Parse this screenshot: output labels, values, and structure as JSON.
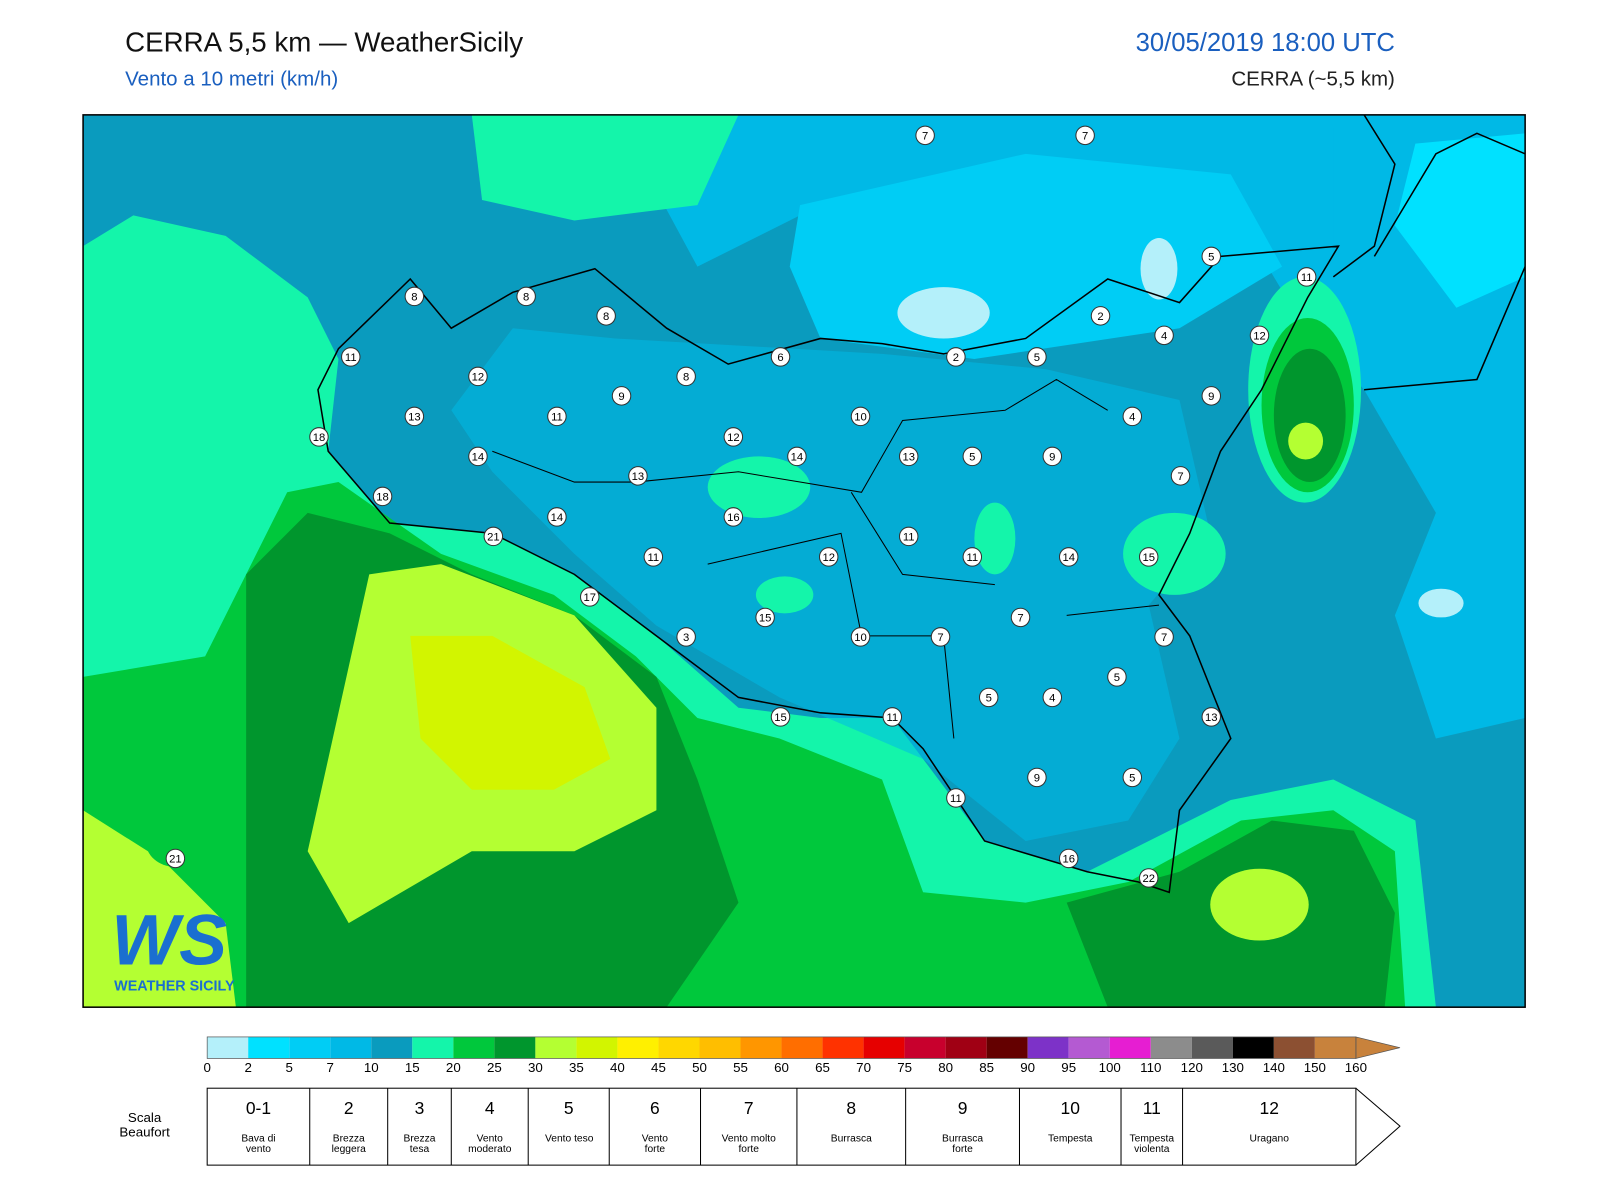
{
  "header": {
    "title": "CERRA 5,5 km — WeatherSicily",
    "subtitle": "Vento a 10 metri (km/h)",
    "datetime": "30/05/2019 18:00 UTC",
    "model": "CERRA (~5,5 km)"
  },
  "map": {
    "station_values": [
      7,
      7,
      5,
      11,
      8,
      8,
      8,
      2,
      4,
      12,
      11,
      6,
      2,
      5,
      12,
      8,
      9,
      9,
      13,
      11,
      10,
      4,
      18,
      12,
      14,
      14,
      13,
      5,
      9,
      13,
      7,
      18,
      16,
      14,
      21,
      11,
      11,
      12,
      11,
      14,
      15,
      17,
      15,
      7,
      3,
      10,
      7,
      7,
      5,
      5,
      4,
      13,
      15,
      11,
      9,
      5,
      11,
      21,
      16,
      22
    ]
  },
  "logo": {
    "initials": "WS",
    "name": "WEATHER SICILY"
  },
  "colorbar": {
    "ticks": [
      0,
      2,
      5,
      7,
      10,
      15,
      20,
      25,
      30,
      35,
      40,
      45,
      50,
      55,
      60,
      65,
      70,
      75,
      80,
      85,
      90,
      95,
      100,
      110,
      120,
      130,
      140,
      150,
      160
    ],
    "colors": [
      "#b4f0fa",
      "#00e1ff",
      "#00cdf5",
      "#00b9e6",
      "#0a9bbe",
      "#14f5aa",
      "#00c83c",
      "#00962d",
      "#b4ff32",
      "#d2f500",
      "#fff000",
      "#ffd700",
      "#ffbe00",
      "#ff9600",
      "#ff6e00",
      "#ff3200",
      "#e60000",
      "#c8002d",
      "#a00014",
      "#640000",
      "#7d32c8",
      "#b45ad2",
      "#e61ed2",
      "#8c8c8c",
      "#5a5a5a",
      "#000000",
      "#8c5032",
      "#c8823c"
    ]
  },
  "beaufort": {
    "label": "Scala Beaufort",
    "grades": [
      {
        "grade": "0-1",
        "description": "Bava di vento"
      },
      {
        "grade": "2",
        "description": "Brezza leggera"
      },
      {
        "grade": "3",
        "description": "Brezza tesa"
      },
      {
        "grade": "4",
        "description": "Vento moderato"
      },
      {
        "grade": "5",
        "description": "Vento teso"
      },
      {
        "grade": "6",
        "description": "Vento forte"
      },
      {
        "grade": "7",
        "description": "Vento molto forte"
      },
      {
        "grade": "8",
        "description": "Burrasca"
      },
      {
        "grade": "9",
        "description": "Burrasca forte"
      },
      {
        "grade": "10",
        "description": "Tempesta"
      },
      {
        "grade": "11",
        "description": "Tempesta violenta"
      },
      {
        "grade": "12",
        "description": "Uragano"
      }
    ]
  }
}
